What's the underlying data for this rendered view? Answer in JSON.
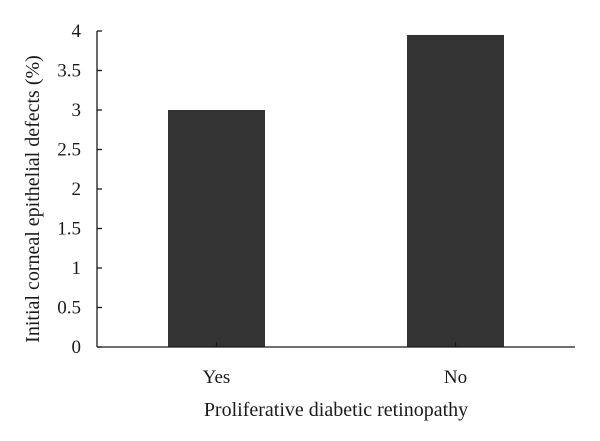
{
  "chart_data": {
    "type": "bar",
    "categories": [
      "Yes",
      "No"
    ],
    "values": [
      3.0,
      3.95
    ],
    "xlabel": "Proliferative diabetic retinopathy",
    "ylabel": "Initial corneal epithelial defects (%)",
    "ylim": [
      0,
      4
    ],
    "yticks": [
      "0",
      "0.5",
      "1",
      "1.5",
      "2",
      "2.5",
      "3",
      "3.5",
      "4"
    ],
    "grid": false,
    "bar_color": "#333333"
  }
}
